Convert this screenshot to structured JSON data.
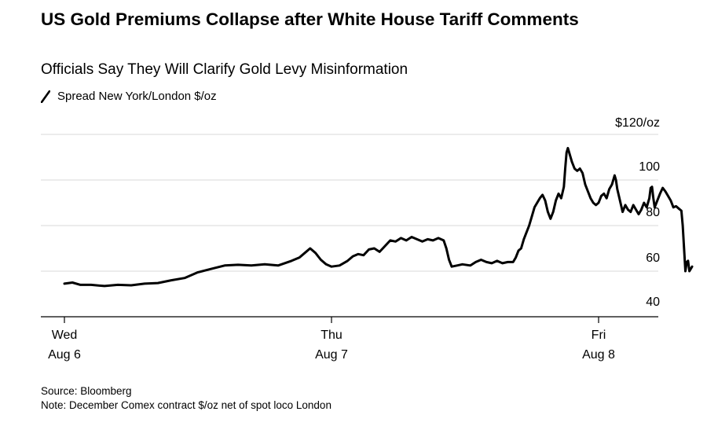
{
  "header": {
    "title": "US Gold Premiums Collapse after White House Tariff Comments",
    "subtitle": "Officials Say They Will Clarify Gold Levy Misinformation"
  },
  "footer": {
    "source": "Source: Bloomberg",
    "note": "Note: December Comex contract $/oz net of spot loco London"
  },
  "chart_data": {
    "type": "line",
    "title": "US Gold Premiums Collapse after White House Tariff Comments",
    "subtitle": "Officials Say They Will Clarify Gold Levy Misinformation",
    "xlabel": "",
    "ylabel": "",
    "ylim": [
      40,
      120
    ],
    "yticks": [
      {
        "value": 120,
        "label": "$120/oz"
      },
      {
        "value": 100,
        "label": "100"
      },
      {
        "value": 80,
        "label": "80"
      },
      {
        "value": 60,
        "label": "60"
      },
      {
        "value": 40,
        "label": "40"
      }
    ],
    "xlim": [
      0,
      2.12
    ],
    "xticks": [
      {
        "value": 0,
        "line1": "Wed",
        "line2": "Aug 6"
      },
      {
        "value": 1,
        "line1": "Thu",
        "line2": "Aug 7"
      },
      {
        "value": 2,
        "line1": "Fri",
        "line2": "Aug 8"
      }
    ],
    "grid": true,
    "legend_position": "top-left",
    "series": [
      {
        "name": "Spread New York/London $/oz",
        "color": "#000000",
        "points": [
          [
            0.0,
            54.5
          ],
          [
            0.03,
            55.0
          ],
          [
            0.06,
            54.0
          ],
          [
            0.1,
            54.0
          ],
          [
            0.15,
            53.5
          ],
          [
            0.2,
            54.0
          ],
          [
            0.25,
            53.8
          ],
          [
            0.3,
            54.5
          ],
          [
            0.35,
            54.8
          ],
          [
            0.4,
            56.0
          ],
          [
            0.45,
            57.0
          ],
          [
            0.5,
            59.5
          ],
          [
            0.55,
            61.0
          ],
          [
            0.6,
            62.5
          ],
          [
            0.65,
            62.8
          ],
          [
            0.7,
            62.5
          ],
          [
            0.75,
            63.0
          ],
          [
            0.8,
            62.5
          ],
          [
            0.85,
            64.5
          ],
          [
            0.88,
            66.0
          ],
          [
            0.9,
            68.0
          ],
          [
            0.92,
            70.0
          ],
          [
            0.94,
            68.0
          ],
          [
            0.96,
            65.0
          ],
          [
            0.98,
            63.0
          ],
          [
            1.0,
            62.0
          ],
          [
            1.03,
            62.5
          ],
          [
            1.06,
            64.5
          ],
          [
            1.08,
            66.5
          ],
          [
            1.1,
            67.5
          ],
          [
            1.12,
            67.0
          ],
          [
            1.14,
            69.5
          ],
          [
            1.16,
            70.0
          ],
          [
            1.18,
            68.5
          ],
          [
            1.2,
            71.0
          ],
          [
            1.22,
            73.5
          ],
          [
            1.24,
            73.0
          ],
          [
            1.26,
            74.5
          ],
          [
            1.28,
            73.5
          ],
          [
            1.3,
            75.0
          ],
          [
            1.32,
            74.0
          ],
          [
            1.34,
            73.0
          ],
          [
            1.36,
            74.0
          ],
          [
            1.38,
            73.5
          ],
          [
            1.4,
            74.5
          ],
          [
            1.42,
            73.5
          ],
          [
            1.43,
            70.0
          ],
          [
            1.44,
            65.0
          ],
          [
            1.45,
            62.0
          ],
          [
            1.47,
            62.5
          ],
          [
            1.49,
            63.0
          ],
          [
            1.52,
            62.5
          ],
          [
            1.54,
            64.0
          ],
          [
            1.56,
            65.0
          ],
          [
            1.58,
            64.0
          ],
          [
            1.6,
            63.5
          ],
          [
            1.62,
            64.5
          ],
          [
            1.64,
            63.5
          ],
          [
            1.66,
            64.0
          ],
          [
            1.68,
            64.0
          ],
          [
            1.69,
            66.0
          ],
          [
            1.7,
            69.0
          ],
          [
            1.71,
            70.0
          ],
          [
            1.72,
            74.0
          ],
          [
            1.73,
            77.0
          ],
          [
            1.74,
            80.0
          ],
          [
            1.75,
            84.0
          ],
          [
            1.76,
            88.0
          ],
          [
            1.78,
            92.0
          ],
          [
            1.79,
            93.5
          ],
          [
            1.8,
            91.0
          ],
          [
            1.81,
            86.0
          ],
          [
            1.82,
            83.0
          ],
          [
            1.83,
            86.0
          ],
          [
            1.84,
            91.0
          ],
          [
            1.85,
            94.0
          ],
          [
            1.86,
            92.0
          ],
          [
            1.87,
            97.0
          ],
          [
            1.875,
            105.0
          ],
          [
            1.88,
            112.0
          ],
          [
            1.885,
            114.0
          ],
          [
            1.89,
            112.0
          ],
          [
            1.9,
            108.0
          ],
          [
            1.91,
            105.0
          ],
          [
            1.92,
            104.0
          ],
          [
            1.93,
            105.0
          ],
          [
            1.94,
            103.0
          ],
          [
            1.95,
            98.0
          ],
          [
            1.96,
            95.0
          ],
          [
            1.97,
            92.0
          ],
          [
            1.98,
            90.0
          ],
          [
            1.99,
            89.0
          ],
          [
            2.0,
            90.0
          ],
          [
            2.01,
            93.0
          ],
          [
            2.02,
            94.0
          ],
          [
            2.03,
            92.0
          ],
          [
            2.04,
            96.0
          ],
          [
            2.05,
            98.0
          ],
          [
            2.06,
            102.0
          ],
          [
            2.065,
            100.0
          ],
          [
            2.07,
            96.0
          ],
          [
            2.08,
            91.0
          ],
          [
            2.09,
            86.0
          ],
          [
            2.1,
            89.0
          ],
          [
            2.11,
            87.0
          ],
          [
            2.12,
            86.0
          ],
          [
            2.13,
            89.0
          ],
          [
            2.14,
            87.0
          ],
          [
            2.15,
            85.0
          ],
          [
            2.16,
            87.0
          ],
          [
            2.17,
            90.0
          ],
          [
            2.18,
            88.0
          ],
          [
            2.19,
            92.0
          ],
          [
            2.195,
            96.5
          ],
          [
            2.2,
            97.0
          ],
          [
            2.205,
            92.0
          ],
          [
            2.21,
            88.0
          ],
          [
            2.22,
            91.0
          ],
          [
            2.23,
            94.0
          ],
          [
            2.24,
            96.5
          ],
          [
            2.25,
            95.0
          ],
          [
            2.26,
            93.0
          ],
          [
            2.27,
            91.0
          ],
          [
            2.28,
            88.0
          ],
          [
            2.29,
            88.5
          ],
          [
            2.3,
            87.5
          ],
          [
            2.31,
            86.5
          ],
          [
            2.315,
            80.0
          ],
          [
            2.32,
            70.0
          ],
          [
            2.325,
            60.0
          ],
          [
            2.33,
            64.0
          ],
          [
            2.335,
            64.5
          ],
          [
            2.34,
            60.0
          ],
          [
            2.345,
            61.0
          ],
          [
            2.35,
            62.0
          ]
        ]
      }
    ]
  }
}
